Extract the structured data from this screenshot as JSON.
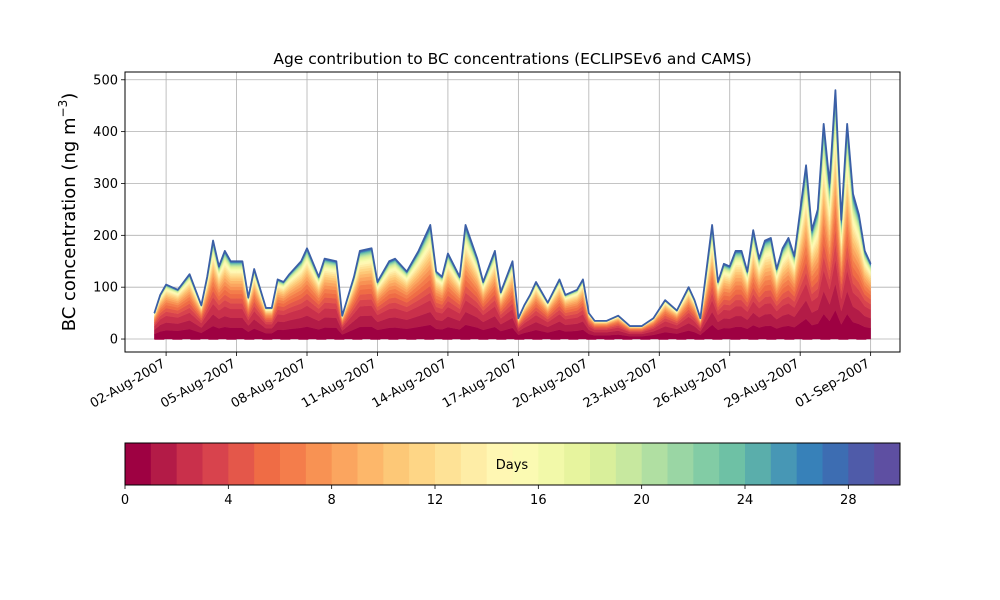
{
  "chart_data": {
    "type": "area",
    "title": "Age contribution to BC concentrations (ECLIPSEv6 and CAMS)",
    "ylabel_text": "BC concentration (ng m",
    "ylabel_superscript": "−3",
    "ylabel_suffix": ")",
    "xlabel": "",
    "ylim": [
      -25,
      515
    ],
    "yticks": [
      0,
      100,
      200,
      300,
      400,
      500
    ],
    "xlim": [
      "2007-07-31T06:00",
      "2007-09-02T06:00"
    ],
    "xticks": [
      {
        "date": "2007-08-02",
        "label": "02-Aug-2007"
      },
      {
        "date": "2007-08-05",
        "label": "05-Aug-2007"
      },
      {
        "date": "2007-08-08",
        "label": "08-Aug-2007"
      },
      {
        "date": "2007-08-11",
        "label": "11-Aug-2007"
      },
      {
        "date": "2007-08-14",
        "label": "14-Aug-2007"
      },
      {
        "date": "2007-08-17",
        "label": "17-Aug-2007"
      },
      {
        "date": "2007-08-20",
        "label": "20-Aug-2007"
      },
      {
        "date": "2007-08-23",
        "label": "23-Aug-2007"
      },
      {
        "date": "2007-08-26",
        "label": "26-Aug-2007"
      },
      {
        "date": "2007-08-29",
        "label": "29-Aug-2007"
      },
      {
        "date": "2007-09-01",
        "label": "01-Sep-2007"
      }
    ],
    "grid": true,
    "total_series": {
      "x": [
        "2007-08-01T12:00",
        "2007-08-01T18:00",
        "2007-08-02T00:00",
        "2007-08-02T12:00",
        "2007-08-03T00:00",
        "2007-08-03T12:00",
        "2007-08-03T18:00",
        "2007-08-04T00:00",
        "2007-08-04T06:00",
        "2007-08-04T12:00",
        "2007-08-04T18:00",
        "2007-08-05T06:00",
        "2007-08-05T12:00",
        "2007-08-05T18:00",
        "2007-08-06T06:00",
        "2007-08-06T12:00",
        "2007-08-06T18:00",
        "2007-08-07T00:00",
        "2007-08-07T06:00",
        "2007-08-07T18:00",
        "2007-08-08T00:00",
        "2007-08-08T12:00",
        "2007-08-08T18:00",
        "2007-08-09T06:00",
        "2007-08-09T12:00",
        "2007-08-10T00:00",
        "2007-08-10T06:00",
        "2007-08-10T18:00",
        "2007-08-11T00:00",
        "2007-08-11T12:00",
        "2007-08-11T18:00",
        "2007-08-12T06:00",
        "2007-08-12T18:00",
        "2007-08-13T06:00",
        "2007-08-13T12:00",
        "2007-08-13T18:00",
        "2007-08-14T00:00",
        "2007-08-14T12:00",
        "2007-08-14T18:00",
        "2007-08-15T06:00",
        "2007-08-15T12:00",
        "2007-08-16T00:00",
        "2007-08-16T06:00",
        "2007-08-16T18:00",
        "2007-08-17T00:00",
        "2007-08-17T06:00",
        "2007-08-17T12:00",
        "2007-08-17T18:00",
        "2007-08-18T06:00",
        "2007-08-18T18:00",
        "2007-08-19T00:00",
        "2007-08-19T12:00",
        "2007-08-19T18:00",
        "2007-08-20T00:00",
        "2007-08-20T06:00",
        "2007-08-20T18:00",
        "2007-08-21T06:00",
        "2007-08-21T18:00",
        "2007-08-22T06:00",
        "2007-08-22T18:00",
        "2007-08-23T06:00",
        "2007-08-23T18:00",
        "2007-08-24T06:00",
        "2007-08-24T12:00",
        "2007-08-24T18:00",
        "2007-08-25T06:00",
        "2007-08-25T12:00",
        "2007-08-25T18:00",
        "2007-08-26T00:00",
        "2007-08-26T06:00",
        "2007-08-26T12:00",
        "2007-08-26T18:00",
        "2007-08-27T00:00",
        "2007-08-27T06:00",
        "2007-08-27T12:00",
        "2007-08-27T18:00",
        "2007-08-28T00:00",
        "2007-08-28T06:00",
        "2007-08-28T12:00",
        "2007-08-28T18:00",
        "2007-08-29T06:00",
        "2007-08-29T12:00",
        "2007-08-29T18:00",
        "2007-08-30T00:00",
        "2007-08-30T06:00",
        "2007-08-30T12:00",
        "2007-08-30T18:00",
        "2007-08-31T00:00",
        "2007-08-31T06:00",
        "2007-08-31T12:00",
        "2007-08-31T18:00",
        "2007-09-01T00:00"
      ],
      "values": [
        50,
        85,
        105,
        95,
        125,
        65,
        120,
        190,
        140,
        170,
        150,
        150,
        80,
        135,
        60,
        60,
        115,
        110,
        125,
        150,
        175,
        120,
        155,
        150,
        45,
        120,
        170,
        175,
        110,
        150,
        155,
        130,
        170,
        220,
        130,
        120,
        165,
        120,
        220,
        155,
        110,
        170,
        90,
        150,
        40,
        65,
        85,
        110,
        70,
        115,
        85,
        95,
        115,
        50,
        35,
        35,
        45,
        25,
        25,
        40,
        75,
        55,
        100,
        75,
        40,
        220,
        110,
        145,
        140,
        170,
        170,
        130,
        210,
        155,
        190,
        195,
        135,
        175,
        195,
        160,
        335,
        210,
        250,
        415,
        300,
        480,
        230,
        415,
        280,
        240,
        170,
        145
      ]
    },
    "colorbar": {
      "label": "Days",
      "vmin": 0,
      "vmax": 30,
      "ticks": [
        0,
        4,
        8,
        12,
        16,
        20,
        24,
        28
      ],
      "colors": [
        "#9e0142",
        "#b31b47",
        "#c9304b",
        "#d8434d",
        "#e4574a",
        "#ef6c45",
        "#f47d4b",
        "#f89253",
        "#fba55f",
        "#fdb76a",
        "#fdc877",
        "#fed686",
        "#fee296",
        "#feeda6",
        "#fff7b3",
        "#fbfab2",
        "#f2f9a9",
        "#e7f49e",
        "#d9ef9b",
        "#c7e89f",
        "#b0dfa2",
        "#9ad6a4",
        "#82cca5",
        "#6ec1a5",
        "#5aaeab",
        "#4797b5",
        "#3781b9",
        "#3d6db2",
        "#4f5ba9",
        "#5e4fa2"
      ]
    },
    "outline_color": "#3b5fa6"
  }
}
